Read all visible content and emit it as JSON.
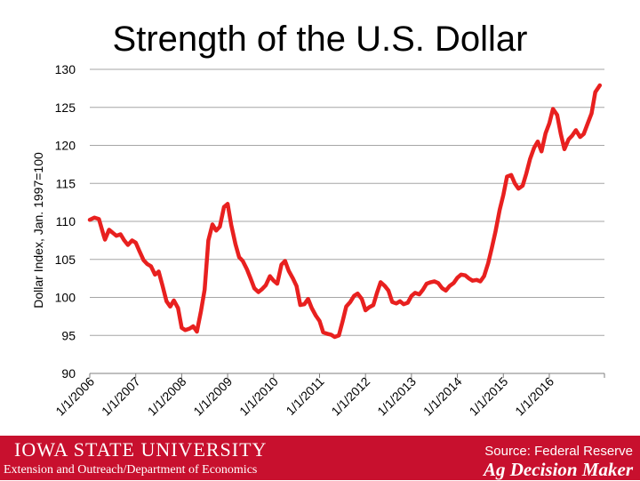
{
  "slide": {
    "title": "Strength of the U.S. Dollar"
  },
  "footer": {
    "logo_text": "IOWA STATE UNIVERSITY",
    "department": "Extension and Outreach/Department of Economics",
    "source": "Source: Federal Reserve",
    "brand": "Ag Decision Maker",
    "bg_color": "#c8102e"
  },
  "chart_data": {
    "type": "line",
    "title": "",
    "xlabel": "",
    "ylabel": "Dollar Index, Jan. 1997=100",
    "ylim": [
      90,
      130
    ],
    "yticks": [
      90,
      95,
      100,
      105,
      110,
      115,
      120,
      125,
      130
    ],
    "xtick_labels": [
      "1/1/2006",
      "1/1/2007",
      "1/1/2008",
      "1/1/2009",
      "1/1/2010",
      "1/1/2011",
      "1/1/2012",
      "1/1/2013",
      "1/1/2014",
      "1/1/2015",
      "1/1/2016"
    ],
    "xlim": [
      2006.0,
      2017.2
    ],
    "grid": true,
    "series": [
      {
        "color": "#e8201f",
        "x": [
          2006.0,
          2006.1,
          2006.2,
          2006.3,
          2006.33,
          2006.42,
          2006.5,
          2006.58,
          2006.67,
          2006.75,
          2006.83,
          2006.92,
          2007.0,
          2007.08,
          2007.17,
          2007.25,
          2007.33,
          2007.42,
          2007.5,
          2007.58,
          2007.67,
          2007.75,
          2007.83,
          2007.92,
          2008.0,
          2008.08,
          2008.17,
          2008.25,
          2008.33,
          2008.42,
          2008.5,
          2008.58,
          2008.67,
          2008.75,
          2008.83,
          2008.92,
          2009.0,
          2009.08,
          2009.17,
          2009.25,
          2009.33,
          2009.42,
          2009.5,
          2009.58,
          2009.67,
          2009.75,
          2009.83,
          2009.92,
          2010.0,
          2010.08,
          2010.17,
          2010.25,
          2010.33,
          2010.42,
          2010.5,
          2010.58,
          2010.67,
          2010.75,
          2010.83,
          2010.92,
          2011.0,
          2011.08,
          2011.17,
          2011.25,
          2011.33,
          2011.42,
          2011.5,
          2011.58,
          2011.67,
          2011.75,
          2011.83,
          2011.92,
          2012.0,
          2012.08,
          2012.17,
          2012.25,
          2012.33,
          2012.42,
          2012.5,
          2012.58,
          2012.67,
          2012.75,
          2012.83,
          2012.92,
          2013.0,
          2013.08,
          2013.17,
          2013.25,
          2013.33,
          2013.42,
          2013.5,
          2013.58,
          2013.67,
          2013.75,
          2013.83,
          2013.92,
          2014.0,
          2014.08,
          2014.17,
          2014.25,
          2014.33,
          2014.42,
          2014.5,
          2014.58,
          2014.67,
          2014.75,
          2014.83,
          2014.92,
          2015.0,
          2015.08,
          2015.17,
          2015.25,
          2015.33,
          2015.42,
          2015.5,
          2015.58,
          2015.67,
          2015.75,
          2015.83,
          2015.92,
          2016.0,
          2016.08,
          2016.17,
          2016.25,
          2016.33,
          2016.42,
          2016.5,
          2016.58,
          2016.67,
          2016.75,
          2016.83,
          2016.92,
          2017.0,
          2017.1
        ],
        "y": [
          110.2,
          110.5,
          110.3,
          108.2,
          107.6,
          108.9,
          108.5,
          108.1,
          108.3,
          107.5,
          106.9,
          107.5,
          107.2,
          106.1,
          104.9,
          104.4,
          104.1,
          103.0,
          103.4,
          101.6,
          99.5,
          98.8,
          99.6,
          98.6,
          96.0,
          95.7,
          95.9,
          96.2,
          95.5,
          98.2,
          101.0,
          107.5,
          109.6,
          108.8,
          109.3,
          111.9,
          112.3,
          109.5,
          107.0,
          105.3,
          104.8,
          103.7,
          102.5,
          101.2,
          100.7,
          101.1,
          101.6,
          102.8,
          102.2,
          101.8,
          104.3,
          104.8,
          103.5,
          102.5,
          101.5,
          99.0,
          99.1,
          99.8,
          98.6,
          97.6,
          96.9,
          95.4,
          95.2,
          95.1,
          94.8,
          95.0,
          96.8,
          98.8,
          99.4,
          100.2,
          100.5,
          99.8,
          98.3,
          98.7,
          99.0,
          100.6,
          102.0,
          101.5,
          100.9,
          99.4,
          99.2,
          99.5,
          99.1,
          99.3,
          100.2,
          100.6,
          100.4,
          101.0,
          101.8,
          102.0,
          102.1,
          101.9,
          101.2,
          100.9,
          101.5,
          101.9,
          102.6,
          103.0,
          102.9,
          102.5,
          102.2,
          102.3,
          102.1,
          102.8,
          104.5,
          106.5,
          108.7,
          111.5,
          113.5,
          115.9,
          116.1,
          115.0,
          114.3,
          114.7,
          116.3,
          118.2,
          119.7,
          120.5,
          119.2,
          121.6,
          122.9,
          124.8,
          124.0,
          121.5,
          119.5,
          120.8,
          121.3,
          122.0,
          121.1,
          121.5,
          122.8,
          124.2,
          127.0,
          127.9
        ]
      }
    ]
  }
}
